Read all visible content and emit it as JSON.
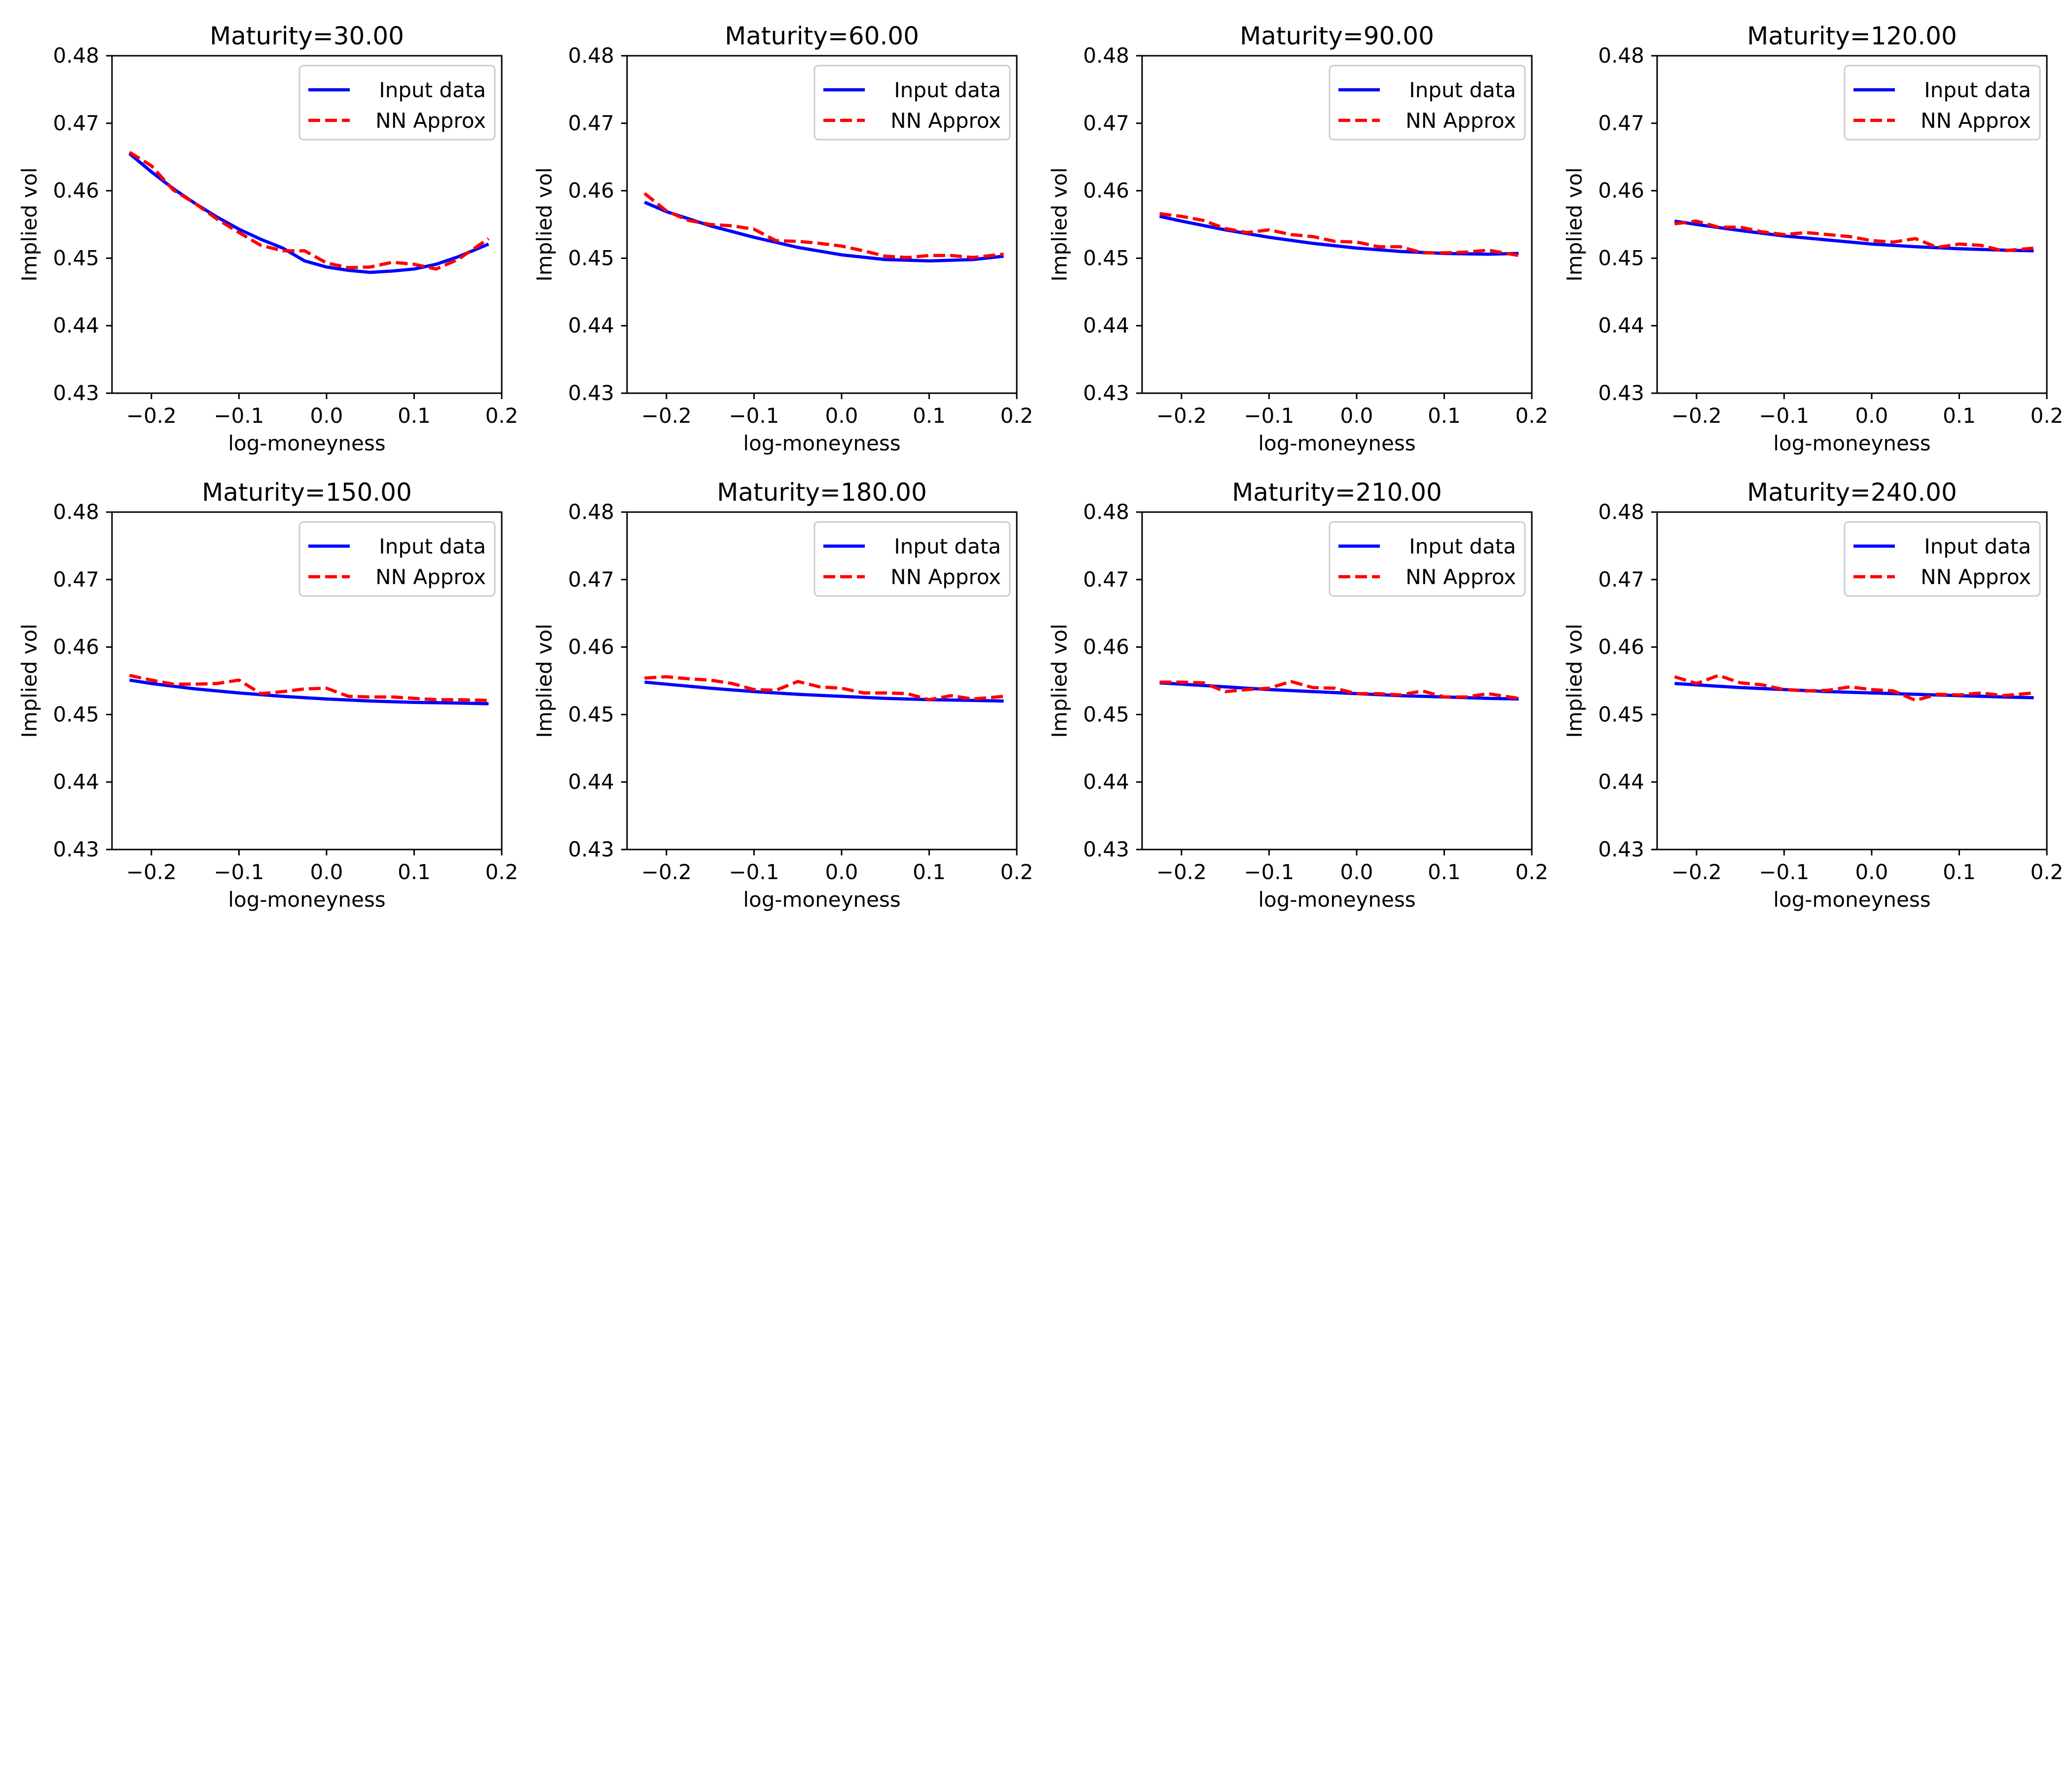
{
  "chart_data": [
    {
      "type": "line",
      "title": "Maturity=30.00",
      "xlabel": "log-moneyness",
      "ylabel": "Implied vol",
      "xlim": [
        -0.245,
        0.2
      ],
      "ylim": [
        0.43,
        0.48
      ],
      "xticks": [
        "−0.2",
        "−0.1",
        "0.0",
        "0.1",
        "0.2"
      ],
      "yticks": [
        "0.43",
        "0.44",
        "0.45",
        "0.46",
        "0.47",
        "0.48"
      ],
      "legend_position": "top-right",
      "series": [
        {
          "name": "Input data",
          "color": "#0000ff",
          "style": "solid",
          "x": [
            -0.225,
            -0.2,
            -0.175,
            -0.15,
            -0.125,
            -0.1,
            -0.075,
            -0.05,
            -0.025,
            0.0,
            0.025,
            0.05,
            0.075,
            0.1,
            0.125,
            0.15,
            0.185
          ],
          "y": [
            0.4655,
            0.4628,
            0.4603,
            0.4581,
            0.4561,
            0.4543,
            0.4528,
            0.4515,
            0.4496,
            0.4487,
            0.4482,
            0.4479,
            0.4481,
            0.4484,
            0.4491,
            0.4502,
            0.4521
          ]
        },
        {
          "name": "NN Approx",
          "color": "#ff0000",
          "style": "dashed",
          "x": [
            -0.225,
            -0.2,
            -0.175,
            -0.15,
            -0.125,
            -0.1,
            -0.075,
            -0.05,
            -0.025,
            0.0,
            0.025,
            0.05,
            0.075,
            0.1,
            0.125,
            0.15,
            0.185
          ],
          "y": [
            0.4657,
            0.4637,
            0.4601,
            0.4581,
            0.4558,
            0.4538,
            0.4519,
            0.4511,
            0.4511,
            0.4493,
            0.4486,
            0.4487,
            0.4494,
            0.4491,
            0.4484,
            0.4498,
            0.4529
          ]
        }
      ]
    },
    {
      "type": "line",
      "title": "Maturity=60.00",
      "xlabel": "log-moneyness",
      "ylabel": "Implied vol",
      "xlim": [
        -0.245,
        0.2
      ],
      "ylim": [
        0.43,
        0.48
      ],
      "xticks": [
        "−0.2",
        "−0.1",
        "0.0",
        "0.1",
        "0.2"
      ],
      "yticks": [
        "0.43",
        "0.44",
        "0.45",
        "0.46",
        "0.47",
        "0.48"
      ],
      "legend_position": "top-right",
      "series": [
        {
          "name": "Input data",
          "color": "#0000ff",
          "style": "solid",
          "x": [
            -0.225,
            -0.2,
            -0.15,
            -0.1,
            -0.05,
            0.0,
            0.05,
            0.1,
            0.15,
            0.185
          ],
          "y": [
            0.4583,
            0.4569,
            0.4548,
            0.4531,
            0.4516,
            0.4505,
            0.4498,
            0.4496,
            0.4498,
            0.4503
          ]
        },
        {
          "name": "NN Approx",
          "color": "#ff0000",
          "style": "dashed",
          "x": [
            -0.225,
            -0.2,
            -0.175,
            -0.15,
            -0.125,
            -0.1,
            -0.075,
            -0.05,
            -0.025,
            0.0,
            0.025,
            0.05,
            0.075,
            0.1,
            0.125,
            0.15,
            0.185
          ],
          "y": [
            0.4596,
            0.457,
            0.4556,
            0.455,
            0.4548,
            0.4543,
            0.4526,
            0.4525,
            0.4522,
            0.4518,
            0.4511,
            0.4503,
            0.4501,
            0.4504,
            0.4504,
            0.4501,
            0.4506
          ]
        }
      ]
    },
    {
      "type": "line",
      "title": "Maturity=90.00",
      "xlabel": "log-moneyness",
      "ylabel": "Implied vol",
      "xlim": [
        -0.245,
        0.2
      ],
      "ylim": [
        0.43,
        0.48
      ],
      "xticks": [
        "−0.2",
        "−0.1",
        "0.0",
        "0.1",
        "0.2"
      ],
      "yticks": [
        "0.43",
        "0.44",
        "0.45",
        "0.46",
        "0.47",
        "0.48"
      ],
      "legend_position": "top-right",
      "series": [
        {
          "name": "Input data",
          "color": "#0000ff",
          "style": "solid",
          "x": [
            -0.225,
            -0.2,
            -0.15,
            -0.1,
            -0.05,
            0.0,
            0.05,
            0.1,
            0.15,
            0.185
          ],
          "y": [
            0.4562,
            0.4555,
            0.4542,
            0.4531,
            0.4522,
            0.4515,
            0.451,
            0.4507,
            0.4506,
            0.4507
          ]
        },
        {
          "name": "NN Approx",
          "color": "#ff0000",
          "style": "dashed",
          "x": [
            -0.225,
            -0.2,
            -0.175,
            -0.15,
            -0.125,
            -0.1,
            -0.075,
            -0.05,
            -0.025,
            0.0,
            0.025,
            0.05,
            0.075,
            0.1,
            0.125,
            0.15,
            0.185
          ],
          "y": [
            0.4566,
            0.4562,
            0.4556,
            0.4544,
            0.4538,
            0.4542,
            0.4535,
            0.4532,
            0.4525,
            0.4524,
            0.4517,
            0.4517,
            0.4508,
            0.4508,
            0.4509,
            0.4512,
            0.4504
          ]
        }
      ]
    },
    {
      "type": "line",
      "title": "Maturity=120.00",
      "xlabel": "log-moneyness",
      "ylabel": "Implied vol",
      "xlim": [
        -0.245,
        0.2
      ],
      "ylim": [
        0.43,
        0.48
      ],
      "xticks": [
        "−0.2",
        "−0.1",
        "0.0",
        "0.1",
        "0.2"
      ],
      "yticks": [
        "0.43",
        "0.44",
        "0.45",
        "0.46",
        "0.47",
        "0.48"
      ],
      "legend_position": "top-right",
      "series": [
        {
          "name": "Input data",
          "color": "#0000ff",
          "style": "solid",
          "x": [
            -0.225,
            -0.2,
            -0.15,
            -0.1,
            -0.05,
            0.0,
            0.05,
            0.1,
            0.15,
            0.185
          ],
          "y": [
            0.4555,
            0.455,
            0.4541,
            0.4533,
            0.4527,
            0.4521,
            0.4517,
            0.4514,
            0.4512,
            0.4511
          ]
        },
        {
          "name": "NN Approx",
          "color": "#ff0000",
          "style": "dashed",
          "x": [
            -0.225,
            -0.2,
            -0.175,
            -0.15,
            -0.125,
            -0.1,
            -0.075,
            -0.05,
            -0.025,
            0.0,
            0.025,
            0.05,
            0.075,
            0.1,
            0.125,
            0.15,
            0.185
          ],
          "y": [
            0.4551,
            0.4555,
            0.4546,
            0.4546,
            0.4539,
            0.4535,
            0.4538,
            0.4535,
            0.4532,
            0.4526,
            0.4524,
            0.4529,
            0.4516,
            0.4521,
            0.4519,
            0.4511,
            0.4515
          ]
        }
      ]
    },
    {
      "type": "line",
      "title": "Maturity=150.00",
      "xlabel": "log-moneyness",
      "ylabel": "Implied vol",
      "xlim": [
        -0.245,
        0.2
      ],
      "ylim": [
        0.43,
        0.48
      ],
      "xticks": [
        "−0.2",
        "−0.1",
        "0.0",
        "0.1",
        "0.2"
      ],
      "yticks": [
        "0.43",
        "0.44",
        "0.45",
        "0.46",
        "0.47",
        "0.48"
      ],
      "legend_position": "top-right",
      "series": [
        {
          "name": "Input data",
          "color": "#0000ff",
          "style": "solid",
          "x": [
            -0.225,
            -0.2,
            -0.15,
            -0.1,
            -0.05,
            0.0,
            0.05,
            0.1,
            0.15,
            0.185
          ],
          "y": [
            0.4551,
            0.4546,
            0.4538,
            0.4532,
            0.4527,
            0.4523,
            0.452,
            0.4518,
            0.4517,
            0.4516
          ]
        },
        {
          "name": "NN Approx",
          "color": "#ff0000",
          "style": "dashed",
          "x": [
            -0.225,
            -0.2,
            -0.175,
            -0.15,
            -0.125,
            -0.1,
            -0.075,
            -0.05,
            -0.025,
            0.0,
            0.025,
            0.05,
            0.075,
            0.1,
            0.125,
            0.15,
            0.185
          ],
          "y": [
            0.4558,
            0.4551,
            0.4545,
            0.4545,
            0.4546,
            0.4551,
            0.4531,
            0.4534,
            0.4538,
            0.4539,
            0.4527,
            0.4526,
            0.4526,
            0.4524,
            0.4522,
            0.4522,
            0.4521
          ]
        }
      ]
    },
    {
      "type": "line",
      "title": "Maturity=180.00",
      "xlabel": "log-moneyness",
      "ylabel": "Implied vol",
      "xlim": [
        -0.245,
        0.2
      ],
      "ylim": [
        0.43,
        0.48
      ],
      "xticks": [
        "−0.2",
        "−0.1",
        "0.0",
        "0.1",
        "0.2"
      ],
      "yticks": [
        "0.43",
        "0.44",
        "0.45",
        "0.46",
        "0.47",
        "0.48"
      ],
      "legend_position": "top-right",
      "series": [
        {
          "name": "Input data",
          "color": "#0000ff",
          "style": "solid",
          "x": [
            -0.225,
            -0.2,
            -0.15,
            -0.1,
            -0.05,
            0.0,
            0.05,
            0.1,
            0.15,
            0.185
          ],
          "y": [
            0.4548,
            0.4545,
            0.4539,
            0.4534,
            0.453,
            0.4527,
            0.4524,
            0.4522,
            0.4521,
            0.452
          ]
        },
        {
          "name": "NN Approx",
          "color": "#ff0000",
          "style": "dashed",
          "x": [
            -0.225,
            -0.2,
            -0.175,
            -0.15,
            -0.125,
            -0.1,
            -0.075,
            -0.05,
            -0.025,
            0.0,
            0.025,
            0.05,
            0.075,
            0.1,
            0.125,
            0.15,
            0.185
          ],
          "y": [
            0.4554,
            0.4556,
            0.4553,
            0.4551,
            0.4546,
            0.4537,
            0.4536,
            0.4549,
            0.4541,
            0.4539,
            0.4532,
            0.4532,
            0.4531,
            0.4522,
            0.4528,
            0.4523,
            0.4527
          ]
        }
      ]
    },
    {
      "type": "line",
      "title": "Maturity=210.00",
      "xlabel": "log-moneyness",
      "ylabel": "Implied vol",
      "xlim": [
        -0.245,
        0.2
      ],
      "ylim": [
        0.43,
        0.48
      ],
      "xticks": [
        "−0.2",
        "−0.1",
        "0.0",
        "0.1",
        "0.2"
      ],
      "yticks": [
        "0.43",
        "0.44",
        "0.45",
        "0.46",
        "0.47",
        "0.48"
      ],
      "legend_position": "top-right",
      "series": [
        {
          "name": "Input data",
          "color": "#0000ff",
          "style": "solid",
          "x": [
            -0.225,
            -0.2,
            -0.15,
            -0.1,
            -0.05,
            0.0,
            0.05,
            0.1,
            0.15,
            0.185
          ],
          "y": [
            0.4547,
            0.4545,
            0.4541,
            0.4537,
            0.4534,
            0.4531,
            0.4528,
            0.4526,
            0.4524,
            0.4523
          ]
        },
        {
          "name": "NN Approx",
          "color": "#ff0000",
          "style": "dashed",
          "x": [
            -0.225,
            -0.2,
            -0.175,
            -0.15,
            -0.125,
            -0.1,
            -0.075,
            -0.05,
            -0.025,
            0.0,
            0.025,
            0.05,
            0.075,
            0.1,
            0.125,
            0.15,
            0.185
          ],
          "y": [
            0.4548,
            0.4548,
            0.4547,
            0.4534,
            0.4537,
            0.4539,
            0.4549,
            0.454,
            0.4539,
            0.4531,
            0.4531,
            0.4529,
            0.4535,
            0.4526,
            0.4526,
            0.4531,
            0.4524
          ]
        }
      ]
    },
    {
      "type": "line",
      "title": "Maturity=240.00",
      "xlabel": "log-moneyness",
      "ylabel": "Implied vol",
      "xlim": [
        -0.245,
        0.2
      ],
      "ylim": [
        0.43,
        0.48
      ],
      "xticks": [
        "−0.2",
        "−0.1",
        "0.0",
        "0.1",
        "0.2"
      ],
      "yticks": [
        "0.43",
        "0.44",
        "0.45",
        "0.46",
        "0.47",
        "0.48"
      ],
      "legend_position": "top-right",
      "series": [
        {
          "name": "Input data",
          "color": "#0000ff",
          "style": "solid",
          "x": [
            -0.225,
            -0.2,
            -0.15,
            -0.1,
            -0.05,
            0.0,
            0.05,
            0.1,
            0.15,
            0.185
          ],
          "y": [
            0.4546,
            0.4544,
            0.454,
            0.4537,
            0.4534,
            0.4532,
            0.453,
            0.4528,
            0.4526,
            0.4525
          ]
        },
        {
          "name": "NN Approx",
          "color": "#ff0000",
          "style": "dashed",
          "x": [
            -0.225,
            -0.2,
            -0.175,
            -0.15,
            -0.125,
            -0.1,
            -0.075,
            -0.05,
            -0.025,
            0.0,
            0.025,
            0.05,
            0.075,
            0.1,
            0.125,
            0.15,
            0.185
          ],
          "y": [
            0.4556,
            0.4546,
            0.4558,
            0.4547,
            0.4544,
            0.4537,
            0.4535,
            0.4536,
            0.4541,
            0.4537,
            0.4535,
            0.4521,
            0.453,
            0.4529,
            0.4532,
            0.4528,
            0.4532
          ]
        }
      ]
    }
  ]
}
